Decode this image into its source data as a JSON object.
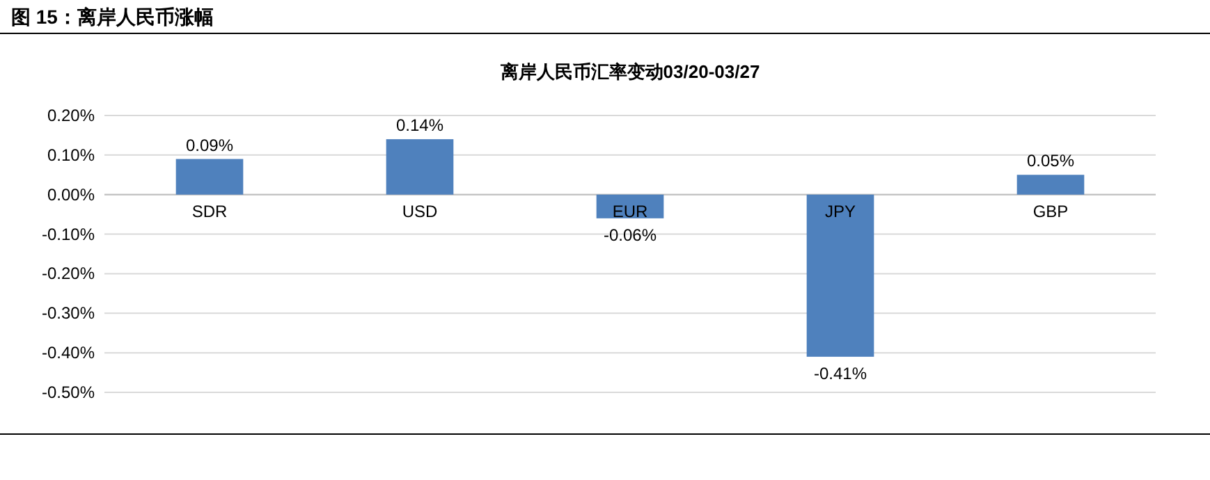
{
  "chart_data": {
    "type": "bar",
    "title": "图 15：离岸人民币涨幅",
    "subtitle": "离岸人民币汇率变动03/20-03/27",
    "categories": [
      "SDR",
      "USD",
      "EUR",
      "JPY",
      "GBP"
    ],
    "values": [
      0.09,
      0.14,
      -0.06,
      -0.41,
      0.05
    ],
    "value_labels": [
      "0.09%",
      "0.14%",
      "-0.06%",
      "-0.41%",
      "0.05%"
    ],
    "color": "#4f81bd",
    "ylim": [
      -0.5,
      0.2
    ],
    "yticks": [
      {
        "value": 0.2,
        "label": "0.20%"
      },
      {
        "value": 0.1,
        "label": "0.10%"
      },
      {
        "value": 0,
        "label": "0.00%"
      },
      {
        "value": -0.1,
        "label": "-0.10%"
      },
      {
        "value": -0.2,
        "label": "-0.20%"
      },
      {
        "value": -0.3,
        "label": "-0.30%"
      },
      {
        "value": -0.4,
        "label": "-0.40%"
      },
      {
        "value": -0.5,
        "label": "-0.50%"
      }
    ],
    "grid": "y"
  }
}
